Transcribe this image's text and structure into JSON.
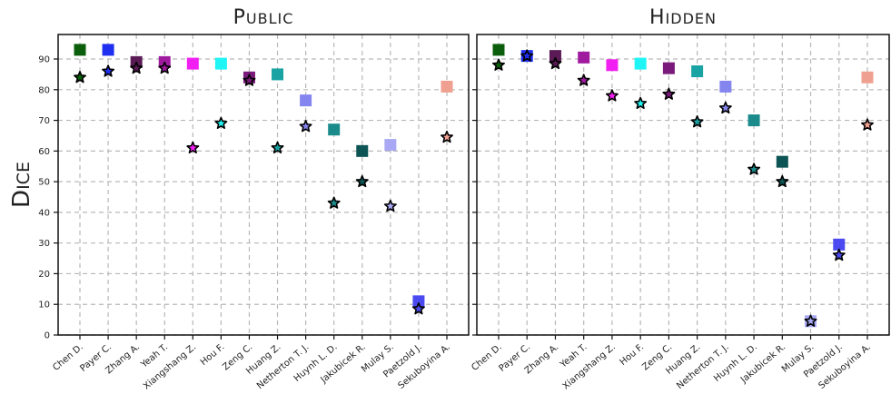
{
  "chart_data": [
    {
      "type": "scatter",
      "title": "PUBLIC",
      "ylabel": "DICE",
      "xlabel": "",
      "ylim": [
        0,
        98
      ],
      "yticks": [
        0,
        10,
        20,
        30,
        40,
        50,
        60,
        70,
        80,
        90
      ],
      "grid": true,
      "categories": [
        "Chen D.",
        "Payer C.",
        "Zhang A.",
        "Yeah T.",
        "Xiangshang Z.",
        "Hou F.",
        "Zeng C.",
        "Huang Z.",
        "Netherton T. J.",
        "Huynh L. D.",
        "Jakubicek R.",
        "Mulay S.",
        "Paetzold J.",
        "Sekuboyina A."
      ],
      "colors": [
        "#0b5e0b",
        "#1f2ff0",
        "#5a1a55",
        "#a01aa0",
        "#f21ff2",
        "#1ff5f5",
        "#7a1a7a",
        "#1aa3a3",
        "#8585f0",
        "#1a8a8a",
        "#0d5555",
        "#a8a8f5",
        "#4a4af0",
        "#f0a090"
      ],
      "series": [
        {
          "name": "",
          "marker": "square",
          "values": [
            93,
            93,
            89,
            89,
            88.5,
            88.5,
            84,
            85,
            76.5,
            67,
            60,
            62,
            11,
            81
          ]
        },
        {
          "name": "",
          "marker": "star",
          "values": [
            84,
            86,
            87,
            87,
            61,
            69,
            83,
            61,
            68,
            43,
            50,
            42,
            8.5,
            64.5
          ]
        }
      ]
    },
    {
      "type": "scatter",
      "title": "HIDDEN",
      "xlabel": "",
      "ylim": [
        0,
        98
      ],
      "grid": true,
      "categories": [
        "Chen D.",
        "Payer C.",
        "Zhang A.",
        "Yeah T.",
        "Xiangshang Z.",
        "Hou F.",
        "Zeng C.",
        "Huang Z.",
        "Netherton T. J.",
        "Huynh L. D.",
        "Jakubicek R.",
        "Mulay S.",
        "Paetzold J.",
        "Sekuboyina A."
      ],
      "colors": [
        "#0b5e0b",
        "#1f2ff0",
        "#5a1a55",
        "#a01aa0",
        "#f21ff2",
        "#1ff5f5",
        "#7a1a7a",
        "#1aa3a3",
        "#8585f0",
        "#1a8a8a",
        "#0d5555",
        "#a8a8f5",
        "#4a4af0",
        "#f0a090"
      ],
      "series": [
        {
          "name": "",
          "marker": "square",
          "values": [
            93,
            91,
            91,
            90.5,
            88,
            88.5,
            87,
            86,
            81,
            70,
            56.5,
            4.5,
            29.5,
            84
          ]
        },
        {
          "name": "",
          "marker": "star",
          "values": [
            88,
            91,
            88.5,
            83,
            78,
            75.5,
            78.5,
            69.5,
            74,
            54,
            50,
            4.5,
            26,
            68.5
          ]
        }
      ]
    }
  ]
}
